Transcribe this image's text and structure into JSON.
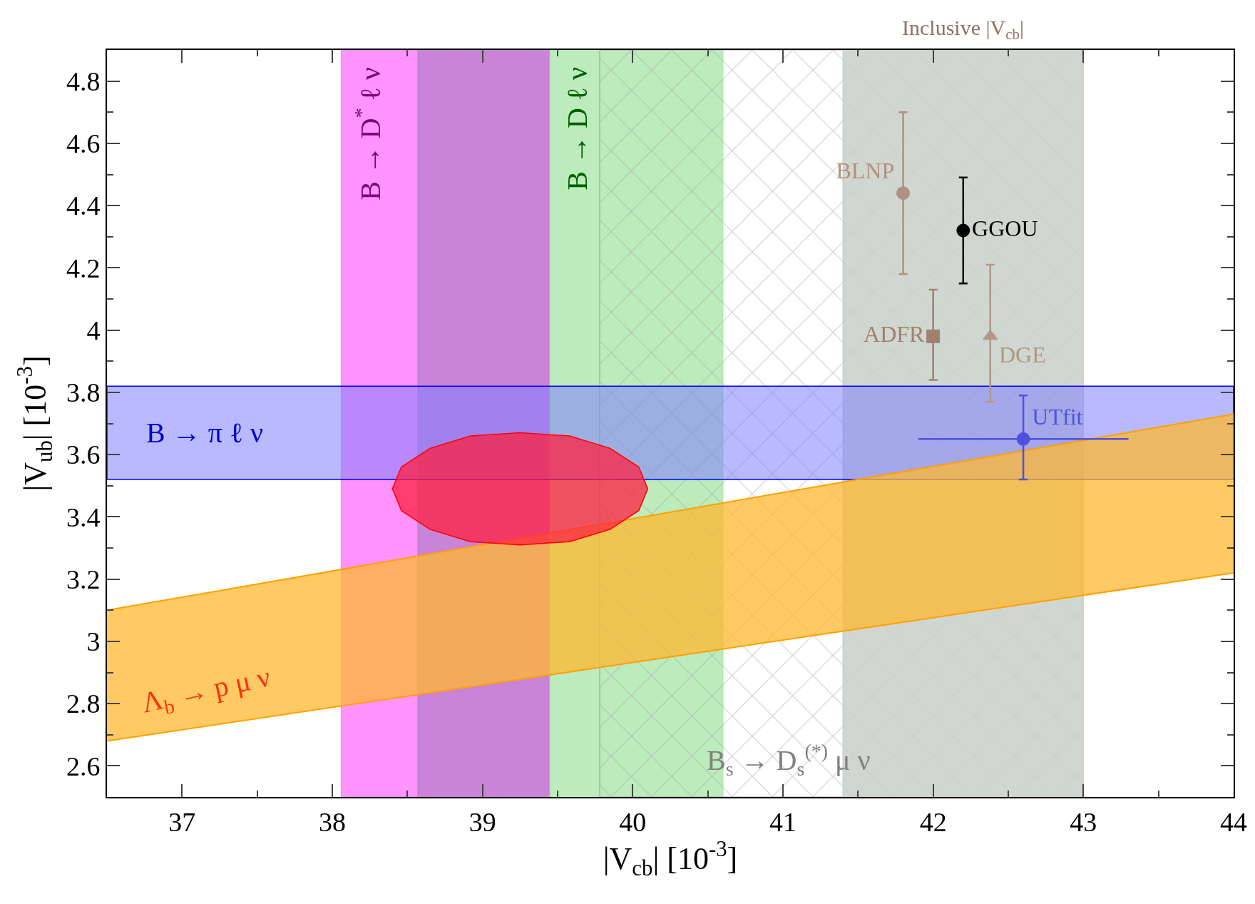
{
  "chart_data": {
    "type": "scatter",
    "xlabel": "|V$_{cb}$| [10$^{-3}$]",
    "ylabel": "|V$_{ub}$| [10$^{-3}$]",
    "xlim": [
      36.5,
      44
    ],
    "xticks": [
      37,
      38,
      39,
      40,
      41,
      42,
      43,
      44
    ],
    "ylim": [
      2.5,
      4.9
    ],
    "yticks": [
      2.6,
      2.8,
      3,
      3.2,
      3.4,
      3.6,
      3.8,
      4,
      4.2,
      4.4,
      4.6,
      4.8
    ],
    "bands": [
      {
        "axis": "x",
        "from": 38.06,
        "to": 39.45,
        "label": "B → D$^{*}$ ℓ ν",
        "color": "#ff80ff"
      },
      {
        "axis": "x",
        "from": 38.57,
        "to": 39.45,
        "color": "#c080d0"
      },
      {
        "axis": "x",
        "from": 39.45,
        "to": 40.6,
        "label": "B → D ℓ ν",
        "color": "#b0e8b0"
      },
      {
        "axis": "x",
        "from": 39.78,
        "to": 43.0,
        "label": "B$_{s}$ → D$_{s}$$^{(*)}$ μ ν",
        "color": "#a0a0a0"
      },
      {
        "axis": "x",
        "from": 41.4,
        "to": 43.0,
        "label": "Inclusive |V$_{cb}$|",
        "color": "#c8d0c8"
      },
      {
        "axis": "y",
        "from": 3.52,
        "to": 3.82,
        "label": "B → π ℓ ν",
        "color": "#8080ff"
      }
    ],
    "series": [
      {
        "type": "line",
        "color": "#ffa000",
        "x": [
          36.5,
          44
        ],
        "values": [
          2.68,
          3.22
        ]
      },
      {
        "type": "area",
        "name": "Λ$_{b}$ → p μ ν",
        "color": "#ffb830",
        "x": [
          36.5,
          44
        ],
        "values": [
          3.1,
          3.73
        ]
      },
      {
        "type": "area",
        "color": "#ff2040",
        "x": [
          40.1,
          40.04,
          39.85,
          39.58,
          39.25,
          38.92,
          38.65,
          38.46,
          38.4,
          38.46,
          38.65,
          38.92,
          39.25,
          39.58,
          39.85,
          40.04,
          40.1
        ],
        "values": [
          3.49,
          3.56,
          3.62,
          3.66,
          3.67,
          3.66,
          3.62,
          3.56,
          3.49,
          3.42,
          3.36,
          3.32,
          3.31,
          3.32,
          3.36,
          3.42,
          3.49
        ]
      },
      {
        "name": "BLNP",
        "color": "#b09080",
        "marker": "circle",
        "x": [
          41.8
        ],
        "values": [
          4.44
        ],
        "errors": [
          [
            4.18,
            4.7
          ]
        ]
      },
      {
        "name": "GGOU",
        "color": "#000000",
        "marker": "circle",
        "x": [
          42.2
        ],
        "values": [
          4.32
        ],
        "errors": [
          [
            4.15,
            4.49
          ]
        ]
      },
      {
        "name": "ADFR",
        "color": "#a08070",
        "marker": "square",
        "x": [
          42.0
        ],
        "values": [
          3.98
        ],
        "errors": [
          [
            3.84,
            4.13
          ]
        ]
      },
      {
        "name": "DGE",
        "color": "#b09888",
        "marker": "triangle",
        "x": [
          42.38
        ],
        "values": [
          3.98
        ],
        "errors": [
          [
            3.77,
            4.21
          ]
        ]
      },
      {
        "name": "UTfit",
        "color": "#5050e0",
        "marker": "circle",
        "x": [
          42.6
        ],
        "values": [
          3.65
        ],
        "errors": [
          [
            3.52,
            3.79
          ]
        ],
        "xerrors": [
          [
            41.9,
            43.3
          ]
        ]
      }
    ]
  }
}
